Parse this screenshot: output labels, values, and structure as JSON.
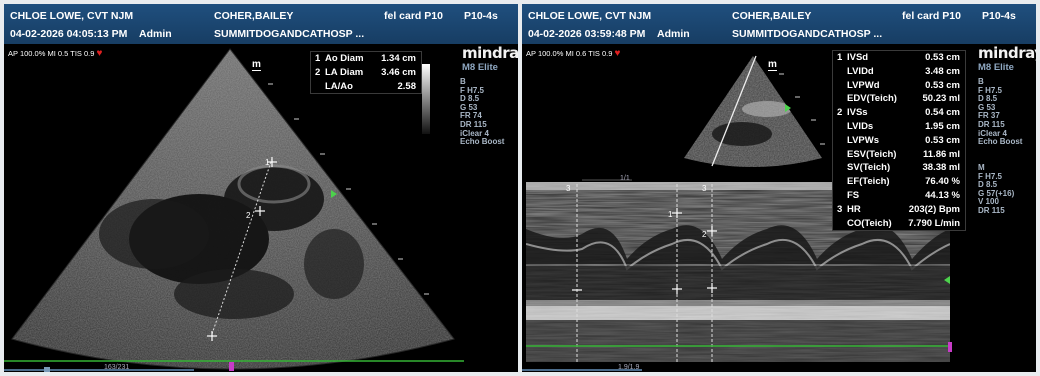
{
  "left": {
    "header": {
      "operator": "CHLOE LOWE, CVT NJM",
      "patient": "COHER,BAILEY",
      "exam": "fel card P10",
      "probe": "P10-4s",
      "datetime": "04-02-2026 04:05:13 PM",
      "user": "Admin",
      "hospital": "SUMMITDOGANDCATHOSP ..."
    },
    "acoustic": "AP 100.0%  MI 0.5 TIS 0.9",
    "mode_icon": "m",
    "measurements": [
      {
        "idx": "1",
        "label": "Ao Diam",
        "value": "1.34 cm"
      },
      {
        "idx": "2",
        "label": "LA Diam",
        "value": "3.46 cm"
      },
      {
        "idx": "",
        "label": "LA/Ao",
        "value": "2.58"
      }
    ],
    "brand": "mindray",
    "model": "M8 Elite",
    "params": [
      "B",
      "F H7.5",
      "D 8.5",
      "G 53",
      "FR 74",
      "DR 115",
      "iClear 4",
      "Echo Boost"
    ],
    "caliper_labels": [
      "1",
      "2"
    ],
    "cine_label": "163/231"
  },
  "right": {
    "header": {
      "operator": "CHLOE LOWE, CVT NJM",
      "patient": "COHER,BAILEY",
      "exam": "fel card P10",
      "probe": "P10-4s",
      "datetime": "04-02-2026 03:59:48 PM",
      "user": "Admin",
      "hospital": "SUMMITDOGANDCATHOSP ..."
    },
    "acoustic": "AP 100.0%  MI 0.6 TIS 0.9",
    "mode_icon": "m",
    "measurements": [
      {
        "idx": "1",
        "label": "IVSd",
        "value": "0.53 cm"
      },
      {
        "idx": "",
        "label": "LVIDd",
        "value": "3.48 cm"
      },
      {
        "idx": "",
        "label": "LVPWd",
        "value": "0.53 cm"
      },
      {
        "idx": "",
        "label": "EDV(Teich)",
        "value": "50.23 ml"
      },
      {
        "idx": "2",
        "label": "IVSs",
        "value": "0.54 cm"
      },
      {
        "idx": "",
        "label": "LVIDs",
        "value": "1.95 cm"
      },
      {
        "idx": "",
        "label": "LVPWs",
        "value": "0.53 cm"
      },
      {
        "idx": "",
        "label": "ESV(Teich)",
        "value": "11.86 ml"
      },
      {
        "idx": "",
        "label": "SV(Teich)",
        "value": "38.38 ml"
      },
      {
        "idx": "",
        "label": "EF(Teich)",
        "value": "76.40 %"
      },
      {
        "idx": "",
        "label": "FS",
        "value": "44.13 %"
      },
      {
        "idx": "3",
        "label": "HR",
        "value": "203(2) Bpm"
      },
      {
        "idx": "",
        "label": "CO(Teich)",
        "value": "7.790 L/min"
      }
    ],
    "brand": "mindray",
    "model": "M8 Elite",
    "params_b": [
      "B",
      "F H7.5",
      "D 8.5",
      "G 53",
      "FR 37",
      "DR 115",
      "iClear 4",
      "Echo Boost"
    ],
    "params_m": [
      "M",
      "F H7.5",
      "D 8.5",
      "G 57(+16)",
      "V 100",
      "DR 115"
    ],
    "caliper_labels": [
      "1",
      "2",
      "3",
      "3"
    ],
    "cine_label": "1.9/1.9",
    "mmode_top_label": "1/1"
  }
}
